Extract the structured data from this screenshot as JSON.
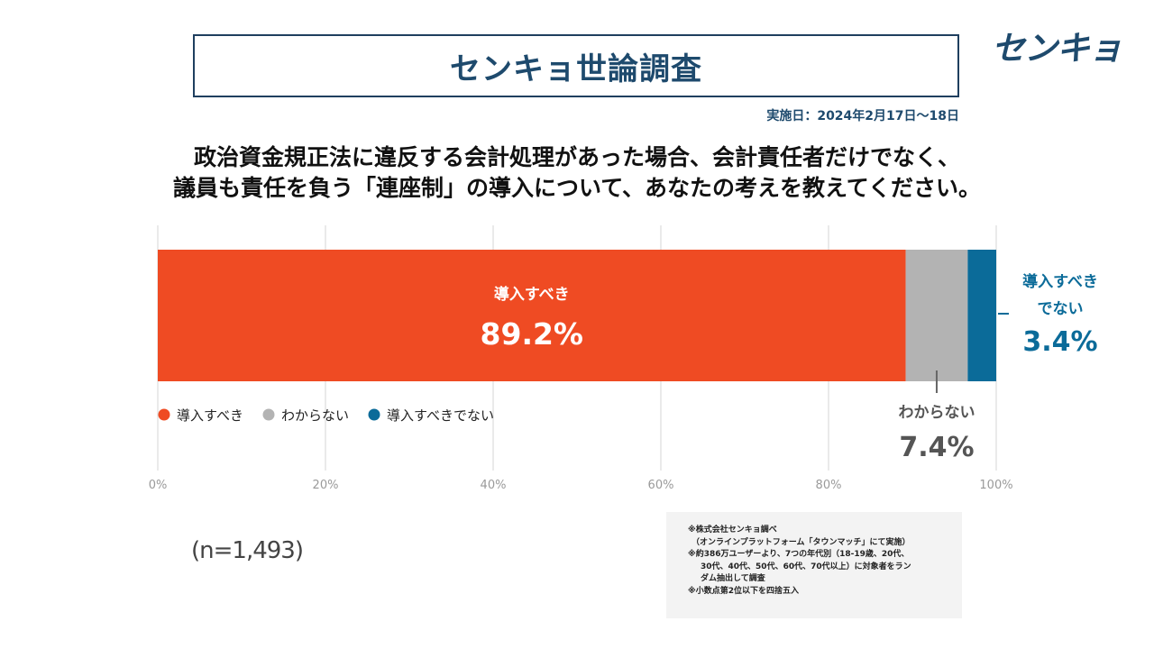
{
  "header": {
    "title": "センキョ世論調査",
    "logo_text": "センキョ",
    "date": "実施日：2024年2月17日〜18日"
  },
  "question": {
    "line1": "政治資金規正法に違反する会計処理があった場合、会計責任者だけでなく、",
    "line2": "議員も責任を負う「連座制」の導入について、あなたの考えを教えてください。"
  },
  "chart_data": {
    "type": "bar",
    "orientation": "horizontal-stacked-100",
    "series": [
      {
        "name": "導入すべき",
        "value": 89.2,
        "label": "89.2%",
        "color": "#ef4b23"
      },
      {
        "name": "わからない",
        "value": 7.4,
        "label": "7.4%",
        "color": "#b3b3b3"
      },
      {
        "name": "導入すべきでない",
        "value": 3.4,
        "label": "3.4%",
        "color": "#0b6b99"
      }
    ],
    "callouts": {
      "inside_label": "導入すべき",
      "unsure_label": "わからない",
      "against_label_line1": "導入すべき",
      "against_label_line2": "でない"
    },
    "x_ticks": [
      "0%",
      "20%",
      "40%",
      "60%",
      "80%",
      "100%"
    ],
    "xlim": [
      0,
      100
    ],
    "grid": true,
    "legend_position": "bottom-left"
  },
  "sample": "(n=1,493)",
  "notes": [
    "※株式会社センキョ調べ",
    "（オンラインプラットフォーム「タウンマッチ」にて実施）",
    "※約386万ユーザーより、7つの年代別（18-19歳、20代、",
    "30代、40代、50代、60代、70代以上）に対象者をラン",
    "ダム抽出して調査",
    "※小数点第2位以下を四捨五入"
  ],
  "colors": {
    "title_navy": "#1e4a6d",
    "support": "#ef4b23",
    "unsure": "#b3b3b3",
    "against": "#0b6b99"
  }
}
